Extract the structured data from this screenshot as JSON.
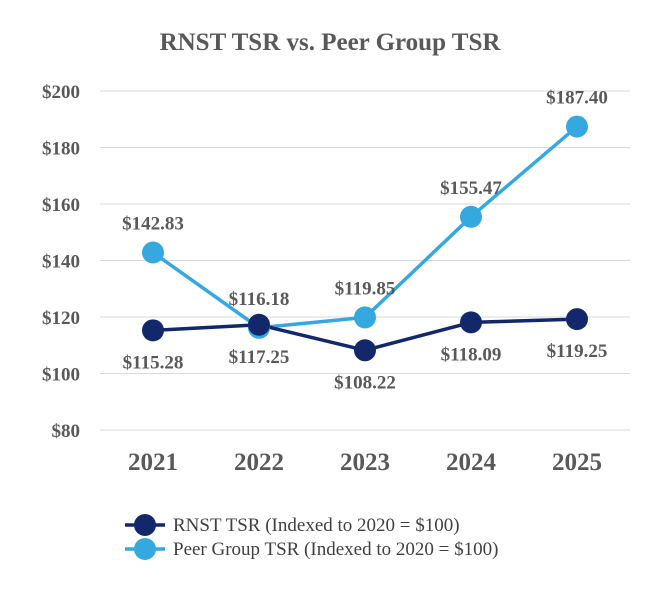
{
  "chart_data": {
    "type": "line",
    "title": "RNST TSR vs. Peer Group TSR",
    "categories": [
      "2021",
      "2022",
      "2023",
      "2024",
      "2025"
    ],
    "ylim": [
      80,
      200
    ],
    "yticks": [
      80,
      100,
      120,
      140,
      160,
      180,
      200
    ],
    "ytick_labels": [
      "$80",
      "$100",
      "$120",
      "$140",
      "$160",
      "$180",
      "$200"
    ],
    "grid": true,
    "legend_position": "bottom-left",
    "series": [
      {
        "name": "RNST TSR (Indexed to 2020 = $100)",
        "color": "#13276b",
        "values": [
          115.28,
          117.25,
          108.22,
          118.09,
          119.25
        ],
        "labels": [
          "$115.28",
          "$117.25",
          "$108.22",
          "$118.09",
          "$119.25"
        ],
        "label_side": [
          "below",
          "below",
          "below",
          "below",
          "below"
        ]
      },
      {
        "name": "Peer Group TSR (Indexed to 2020 = $100)",
        "color": "#35a9df",
        "values": [
          142.83,
          116.18,
          119.85,
          155.47,
          187.4
        ],
        "labels": [
          "$142.83",
          "$116.18",
          "$119.85",
          "$155.47",
          "$187.40"
        ],
        "label_side": [
          "above",
          "above",
          "above",
          "above",
          "above"
        ]
      }
    ]
  }
}
